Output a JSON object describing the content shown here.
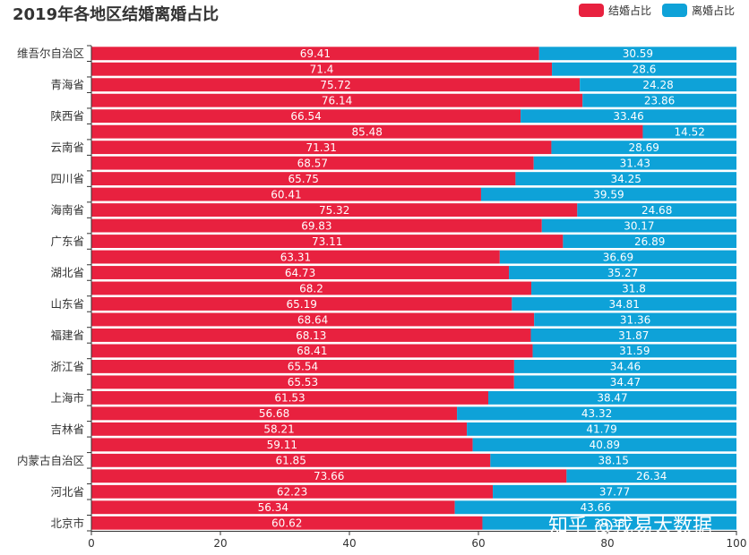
{
  "chart_data": {
    "type": "bar",
    "orientation": "horizontal",
    "stacked": true,
    "title": "2019年各地区结婚离婚占比",
    "legend_position": "top-right",
    "grid": false,
    "xlim": [
      0,
      100
    ],
    "x_ticks": [
      "0",
      "20",
      "40",
      "60",
      "80",
      "100"
    ],
    "category_labels": [
      "维吾尔自治区",
      "青海省",
      "陕西省",
      "云南省",
      "四川省",
      "海南省",
      "广东省",
      "湖北省",
      "山东省",
      "福建省",
      "浙江省",
      "上海市",
      "吉林省",
      "内蒙古自治区",
      "河北省",
      "北京市"
    ],
    "categories_count": 31,
    "series": [
      {
        "name": "结婚占比",
        "color": "#E8213F",
        "values": [
          69.41,
          71.4,
          75.72,
          76.14,
          66.54,
          85.48,
          71.31,
          68.57,
          65.75,
          60.41,
          75.32,
          69.83,
          73.11,
          63.31,
          64.73,
          68.2,
          65.19,
          68.64,
          68.13,
          68.41,
          65.54,
          65.53,
          61.53,
          56.68,
          58.21,
          59.11,
          61.85,
          73.66,
          62.23,
          56.34,
          60.62
        ]
      },
      {
        "name": "离婚占比",
        "color": "#0EA2D8",
        "values": [
          30.59,
          28.6,
          24.28,
          23.86,
          33.46,
          14.52,
          28.69,
          31.43,
          34.25,
          39.59,
          24.68,
          30.17,
          26.89,
          36.69,
          35.27,
          31.8,
          34.81,
          31.36,
          31.87,
          31.59,
          34.46,
          34.47,
          38.47,
          43.32,
          41.79,
          40.89,
          38.15,
          26.34,
          37.77,
          43.66,
          39.38
        ]
      }
    ]
  },
  "watermark": "知乎 @戎易大数据"
}
